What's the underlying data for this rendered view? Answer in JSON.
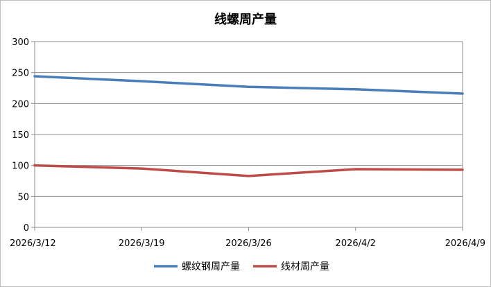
{
  "chart_data": {
    "type": "line",
    "title": "线螺周产量",
    "categories": [
      "2026/3/12",
      "2026/3/19",
      "2026/3/26",
      "2026/4/2",
      "2026/4/9"
    ],
    "series": [
      {
        "name": "螺纹钢周产量",
        "values": [
          244,
          236,
          227,
          223,
          216
        ],
        "color": "#4a7ebb"
      },
      {
        "name": "线材周产量",
        "values": [
          100,
          95,
          83,
          94,
          93
        ],
        "color": "#be4b48"
      }
    ],
    "ylim": [
      0,
      300
    ],
    "yticks": [
      0,
      50,
      100,
      150,
      200,
      250,
      300
    ],
    "grid": true,
    "legend_position": "bottom"
  }
}
